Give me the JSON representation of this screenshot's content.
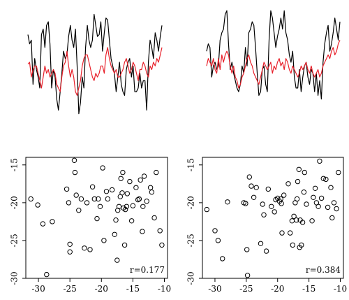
{
  "chart_data": [
    {
      "type": "line",
      "panel": "top-left",
      "axes_visible": false,
      "series": [
        {
          "color": "#000000",
          "values": [
            0.55,
            0.3,
            0.4,
            -0.8,
            -0.1,
            -0.4,
            -0.6,
            -0.9,
            0.55,
            0.7,
            0.2,
            0.8,
            0.9,
            0.3,
            -0.9,
            -0.4,
            -0.6,
            -1.2,
            -1.5,
            -1.0,
            -0.5,
            0.1,
            -0.1,
            0.0,
            0.5,
            0.8,
            0.4,
            0.2,
            0.7,
            -0.3,
            -1.6,
            -1.3,
            -0.6,
            -0.9,
            0.2,
            0.8,
            0.4,
            0.2,
            0.4,
            1.1,
            0.8,
            0.5,
            0.55,
            0.9,
            0.1,
            0.6,
            1.0,
            0.95,
            0.4,
            -0.1,
            -0.3,
            -0.5,
            -1.0,
            -0.6,
            -0.2,
            -0.8,
            -1.0,
            -1.1,
            -0.4,
            -0.2,
            -0.1,
            -0.6,
            -0.3,
            -1.0,
            -1.0,
            -0.9,
            -0.5,
            -0.9,
            -0.7,
            -0.7,
            -1.5,
            -0.2,
            0.4,
            0.2,
            -0.1,
            0.6,
            0.4,
            0.1,
            0.5,
            0.8
          ]
        },
        {
          "color": "#e8212b",
          "values": [
            -0.25,
            -0.2,
            -0.6,
            -0.4,
            -0.3,
            -0.3,
            -0.5,
            -0.7,
            -0.9,
            -0.6,
            -0.3,
            -0.5,
            -0.4,
            -0.6,
            -0.5,
            -0.4,
            -0.5,
            -0.8,
            -0.9,
            -1.0,
            -0.6,
            -0.3,
            -0.2,
            0.1,
            -0.3,
            -0.6,
            -0.4,
            -0.6,
            -1.0,
            -1.1,
            -0.9,
            -0.7,
            -0.3,
            -0.1,
            0.0,
            0.0,
            -0.2,
            -0.4,
            -0.6,
            -0.7,
            -0.5,
            -0.6,
            -0.5,
            -0.3,
            -0.3,
            -0.5,
            0.0,
            0.2,
            -0.1,
            -0.3,
            -0.4,
            -0.5,
            -0.4,
            -0.6,
            -0.6,
            -0.5,
            -0.4,
            -0.2,
            -0.1,
            -0.3,
            -0.5,
            -0.4,
            -0.2,
            -0.3,
            -0.5,
            -0.7,
            -0.4,
            -0.4,
            -0.2,
            -0.3,
            -0.5,
            -0.6,
            -0.3,
            -0.4,
            -0.2,
            -0.3,
            -0.1,
            -0.2,
            0.0,
            0.2
          ]
        }
      ]
    },
    {
      "type": "line",
      "panel": "top-right",
      "axes_visible": false,
      "series": [
        {
          "color": "#000000",
          "values": [
            0.1,
            0.3,
            0.2,
            -0.6,
            -0.3,
            -0.2,
            -0.4,
            -0.3,
            0.4,
            0.6,
            0.7,
            1.1,
            1.2,
            0.3,
            -0.4,
            -0.2,
            -0.5,
            -0.7,
            -0.9,
            -1.0,
            -0.8,
            -0.3,
            -0.5,
            0.2,
            -0.3,
            0.6,
            0.7,
            0.9,
            0.8,
            0.2,
            -0.5,
            -1.1,
            -1.0,
            -0.4,
            -0.3,
            -0.8,
            -1.0,
            0.4,
            1.2,
            1.0,
            0.6,
            0.2,
            0.5,
            0.7,
            1.0,
            0.7,
            1.2,
            0.6,
            0.4,
            0.0,
            -0.2,
            0.1,
            -0.6,
            -0.9,
            -0.9,
            -0.4,
            -1.0,
            -0.6,
            -0.3,
            -0.2,
            -0.6,
            -0.8,
            -0.4,
            -0.5,
            -1.0,
            -0.5,
            -1.1,
            -0.7,
            -1.2,
            -0.2,
            0.3,
            0.6,
            0.8,
            0.1,
            0.3,
            0.6,
            1.0,
            0.7,
            0.4,
            0.9
          ]
        },
        {
          "color": "#e8212b",
          "values": [
            -0.3,
            -0.1,
            -0.2,
            -0.3,
            -0.1,
            -0.4,
            -0.5,
            -0.1,
            -0.4,
            0.0,
            -0.2,
            0.0,
            0.1,
            0.0,
            -0.3,
            -0.5,
            -0.3,
            -0.6,
            -0.7,
            -0.9,
            -0.8,
            -0.6,
            -0.5,
            -0.3,
            -0.1,
            0.0,
            -0.2,
            -0.3,
            -0.5,
            -0.6,
            -0.7,
            -0.8,
            -0.6,
            -0.4,
            -0.2,
            -0.3,
            -0.4,
            -0.3,
            -0.2,
            -0.5,
            -0.3,
            -0.4,
            -0.2,
            -0.1,
            -0.3,
            -0.2,
            -0.4,
            -0.1,
            -0.2,
            -0.4,
            -0.5,
            -0.3,
            -0.4,
            -0.5,
            -0.6,
            -0.5,
            -0.3,
            -0.4,
            -0.3,
            -0.2,
            -0.4,
            -0.5,
            -0.3,
            -0.5,
            -0.6,
            -0.5,
            -0.4,
            -0.6,
            -0.5,
            -0.3,
            -0.2,
            -0.1,
            0.0,
            -0.1,
            0.1,
            0.2,
            0.0,
            0.1,
            0.3,
            0.4
          ]
        }
      ]
    },
    {
      "type": "scatter",
      "panel": "bottom-left",
      "xlim": [
        -32,
        -9.5
      ],
      "ylim": [
        -30,
        -14
      ],
      "xticks": [
        -30,
        -25,
        -20,
        -15,
        -10
      ],
      "yticks": [
        -15,
        -20,
        -25,
        -30
      ],
      "annotation": "r=0.177",
      "points": [
        [
          -31.2,
          -19.5
        ],
        [
          -30.1,
          -20.3
        ],
        [
          -29.3,
          -22.8
        ],
        [
          -28.7,
          -29.5
        ],
        [
          -27.8,
          -22.5
        ],
        [
          -25.5,
          -18.2
        ],
        [
          -25.2,
          -20.0
        ],
        [
          -25.0,
          -25.5
        ],
        [
          -25.0,
          -26.5
        ],
        [
          -24.3,
          -14.4
        ],
        [
          -24.2,
          -16.0
        ],
        [
          -24.0,
          -19.0
        ],
        [
          -23.6,
          -21.0
        ],
        [
          -23.2,
          -19.5
        ],
        [
          -22.7,
          -26.0
        ],
        [
          -22.3,
          -20.0
        ],
        [
          -21.8,
          -26.2
        ],
        [
          -21.4,
          -17.9
        ],
        [
          -21.1,
          -19.5
        ],
        [
          -20.7,
          -22.1
        ],
        [
          -20.5,
          -19.5
        ],
        [
          -20.2,
          -20.5
        ],
        [
          -19.8,
          -15.4
        ],
        [
          -19.6,
          -25.0
        ],
        [
          -19.2,
          -18.5
        ],
        [
          -19.0,
          -19.5
        ],
        [
          -18.3,
          -18.3
        ],
        [
          -17.9,
          -24.2
        ],
        [
          -17.7,
          -22.3
        ],
        [
          -17.5,
          -27.6
        ],
        [
          -17.4,
          -21.0
        ],
        [
          -17.2,
          -20.5
        ],
        [
          -17.0,
          -19.2
        ],
        [
          -16.9,
          -16.8
        ],
        [
          -16.7,
          -18.7
        ],
        [
          -16.6,
          -16.0
        ],
        [
          -16.5,
          -20.7
        ],
        [
          -16.3,
          -25.6
        ],
        [
          -16.2,
          -20.9
        ],
        [
          -16.0,
          -20.5
        ],
        [
          -15.9,
          -18.8
        ],
        [
          -15.5,
          -17.2
        ],
        [
          -15.2,
          -22.4
        ],
        [
          -15.0,
          -20.4
        ],
        [
          -14.5,
          -18.0
        ],
        [
          -14.2,
          -19.6
        ],
        [
          -14.0,
          -19.5
        ],
        [
          -13.8,
          -17.0
        ],
        [
          -13.5,
          -23.8
        ],
        [
          -13.4,
          -20.5
        ],
        [
          -13.2,
          -16.5
        ],
        [
          -12.8,
          -19.8
        ],
        [
          -12.2,
          -18.0
        ],
        [
          -12.0,
          -18.6
        ],
        [
          -11.6,
          -22.0
        ],
        [
          -11.3,
          -16.0
        ],
        [
          -10.7,
          -23.7
        ],
        [
          -10.4,
          -25.6
        ]
      ]
    },
    {
      "type": "scatter",
      "panel": "bottom-right",
      "xlim": [
        -32,
        -9.5
      ],
      "ylim": [
        -30,
        -14
      ],
      "xticks": [
        -30,
        -25,
        -20,
        -15,
        -10
      ],
      "yticks": [
        -15,
        -20,
        -25,
        -30
      ],
      "annotation": "r=0.384",
      "points": [
        [
          -31.3,
          -20.9
        ],
        [
          -30.0,
          -23.7
        ],
        [
          -29.5,
          -25.0
        ],
        [
          -28.8,
          -27.4
        ],
        [
          -28.0,
          -19.9
        ],
        [
          -25.4,
          -20.0
        ],
        [
          -25.1,
          -20.1
        ],
        [
          -24.9,
          -26.2
        ],
        [
          -24.8,
          -29.6
        ],
        [
          -24.5,
          -16.6
        ],
        [
          -24.2,
          -17.8
        ],
        [
          -23.8,
          -19.3
        ],
        [
          -23.4,
          -18.0
        ],
        [
          -22.7,
          -25.4
        ],
        [
          -22.4,
          -20.2
        ],
        [
          -22.2,
          -21.6
        ],
        [
          -21.8,
          -26.4
        ],
        [
          -21.5,
          -18.2
        ],
        [
          -21.0,
          -20.5
        ],
        [
          -20.5,
          -21.2
        ],
        [
          -20.3,
          -19.6
        ],
        [
          -20.0,
          -19.4
        ],
        [
          -19.7,
          -19.8
        ],
        [
          -19.5,
          -19.5
        ],
        [
          -19.4,
          -20.1
        ],
        [
          -19.3,
          -24.0
        ],
        [
          -19.0,
          -19.0
        ],
        [
          -18.3,
          -17.5
        ],
        [
          -18.0,
          -24.0
        ],
        [
          -17.7,
          -22.4
        ],
        [
          -17.6,
          -25.6
        ],
        [
          -17.4,
          -21.8
        ],
        [
          -17.2,
          -20.0
        ],
        [
          -17.0,
          -22.3
        ],
        [
          -16.9,
          -19.5
        ],
        [
          -16.8,
          -17.2
        ],
        [
          -16.6,
          -15.6
        ],
        [
          -16.5,
          -25.9
        ],
        [
          -16.4,
          -22.3
        ],
        [
          -16.2,
          -25.6
        ],
        [
          -16.0,
          -22.6
        ],
        [
          -15.8,
          -18.6
        ],
        [
          -15.7,
          -16.0
        ],
        [
          -15.4,
          -20.2
        ],
        [
          -14.5,
          -22.4
        ],
        [
          -14.3,
          -19.3
        ],
        [
          -14.0,
          -18.1
        ],
        [
          -13.8,
          -20.0
        ],
        [
          -13.5,
          -20.5
        ],
        [
          -13.3,
          -14.5
        ],
        [
          -13.0,
          -19.4
        ],
        [
          -12.7,
          -16.8
        ],
        [
          -12.3,
          -16.9
        ],
        [
          -12.0,
          -20.6
        ],
        [
          -11.5,
          -18.0
        ],
        [
          -11.3,
          -22.0
        ],
        [
          -11.0,
          -20.0
        ],
        [
          -10.6,
          -20.8
        ],
        [
          -10.3,
          -16.0
        ]
      ]
    }
  ]
}
